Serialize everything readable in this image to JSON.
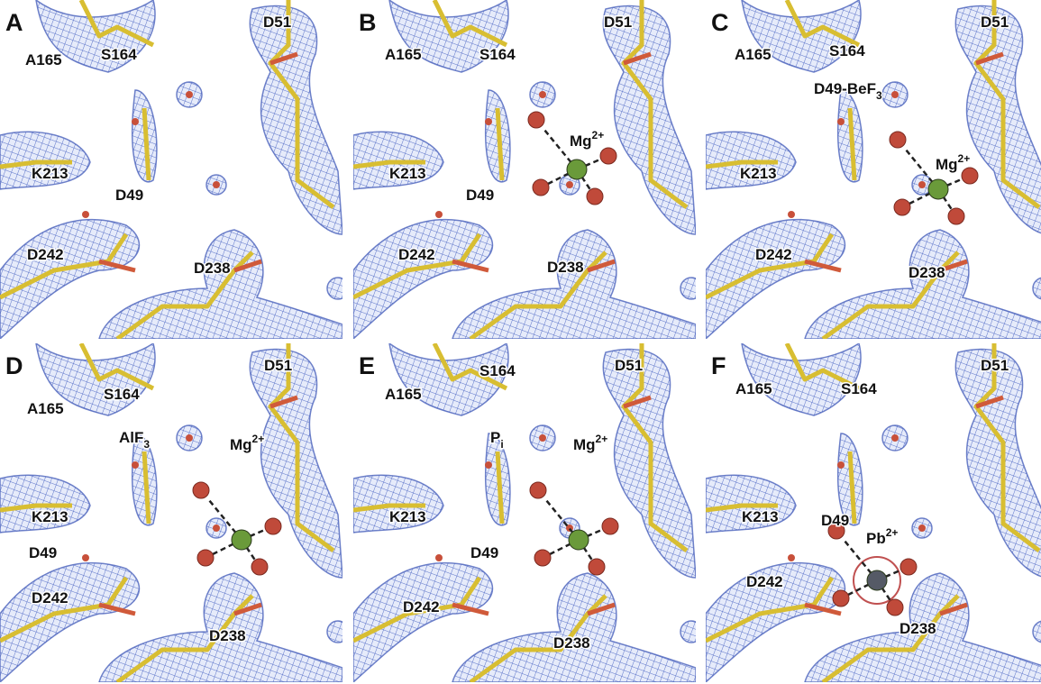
{
  "panels": [
    {
      "letter": "A",
      "labels": [
        {
          "text": "A165"
        },
        {
          "text": "S164"
        },
        {
          "text": "D51"
        },
        {
          "text": "K213"
        },
        {
          "text": "D49"
        },
        {
          "text": "D242"
        },
        {
          "text": "D238"
        }
      ]
    },
    {
      "letter": "B",
      "labels": [
        {
          "text": "A165"
        },
        {
          "text": "S164"
        },
        {
          "text": "D51"
        },
        {
          "text": "Mg",
          "sup": "2+"
        },
        {
          "text": "K213"
        },
        {
          "text": "D49"
        },
        {
          "text": "D242"
        },
        {
          "text": "D238"
        }
      ]
    },
    {
      "letter": "C",
      "labels": [
        {
          "text": "A165"
        },
        {
          "text": "S164"
        },
        {
          "text": "D51"
        },
        {
          "text": "D49-BeF",
          "sub": "3"
        },
        {
          "text": "Mg",
          "sup": "2+"
        },
        {
          "text": "K213"
        },
        {
          "text": "D242"
        },
        {
          "text": "D238"
        }
      ]
    },
    {
      "letter": "D",
      "labels": [
        {
          "text": "D51"
        },
        {
          "text": "A165"
        },
        {
          "text": "S164"
        },
        {
          "text": "AlF",
          "sub": "3"
        },
        {
          "text": "Mg",
          "sup": "2+"
        },
        {
          "text": "K213"
        },
        {
          "text": "D49"
        },
        {
          "text": "D242"
        },
        {
          "text": "D238"
        }
      ]
    },
    {
      "letter": "E",
      "labels": [
        {
          "text": "D51"
        },
        {
          "text": "S164"
        },
        {
          "text": "A165"
        },
        {
          "text": "P",
          "sub": "i"
        },
        {
          "text": "Mg",
          "sup": "2+"
        },
        {
          "text": "K213"
        },
        {
          "text": "D49"
        },
        {
          "text": "D242"
        },
        {
          "text": "D238"
        }
      ]
    },
    {
      "letter": "F",
      "labels": [
        {
          "text": "D51"
        },
        {
          "text": "A165"
        },
        {
          "text": "S164"
        },
        {
          "text": "K213"
        },
        {
          "text": "D49"
        },
        {
          "text": "Pb",
          "sup": "2+"
        },
        {
          "text": "D242"
        },
        {
          "text": "D238"
        }
      ]
    }
  ]
}
